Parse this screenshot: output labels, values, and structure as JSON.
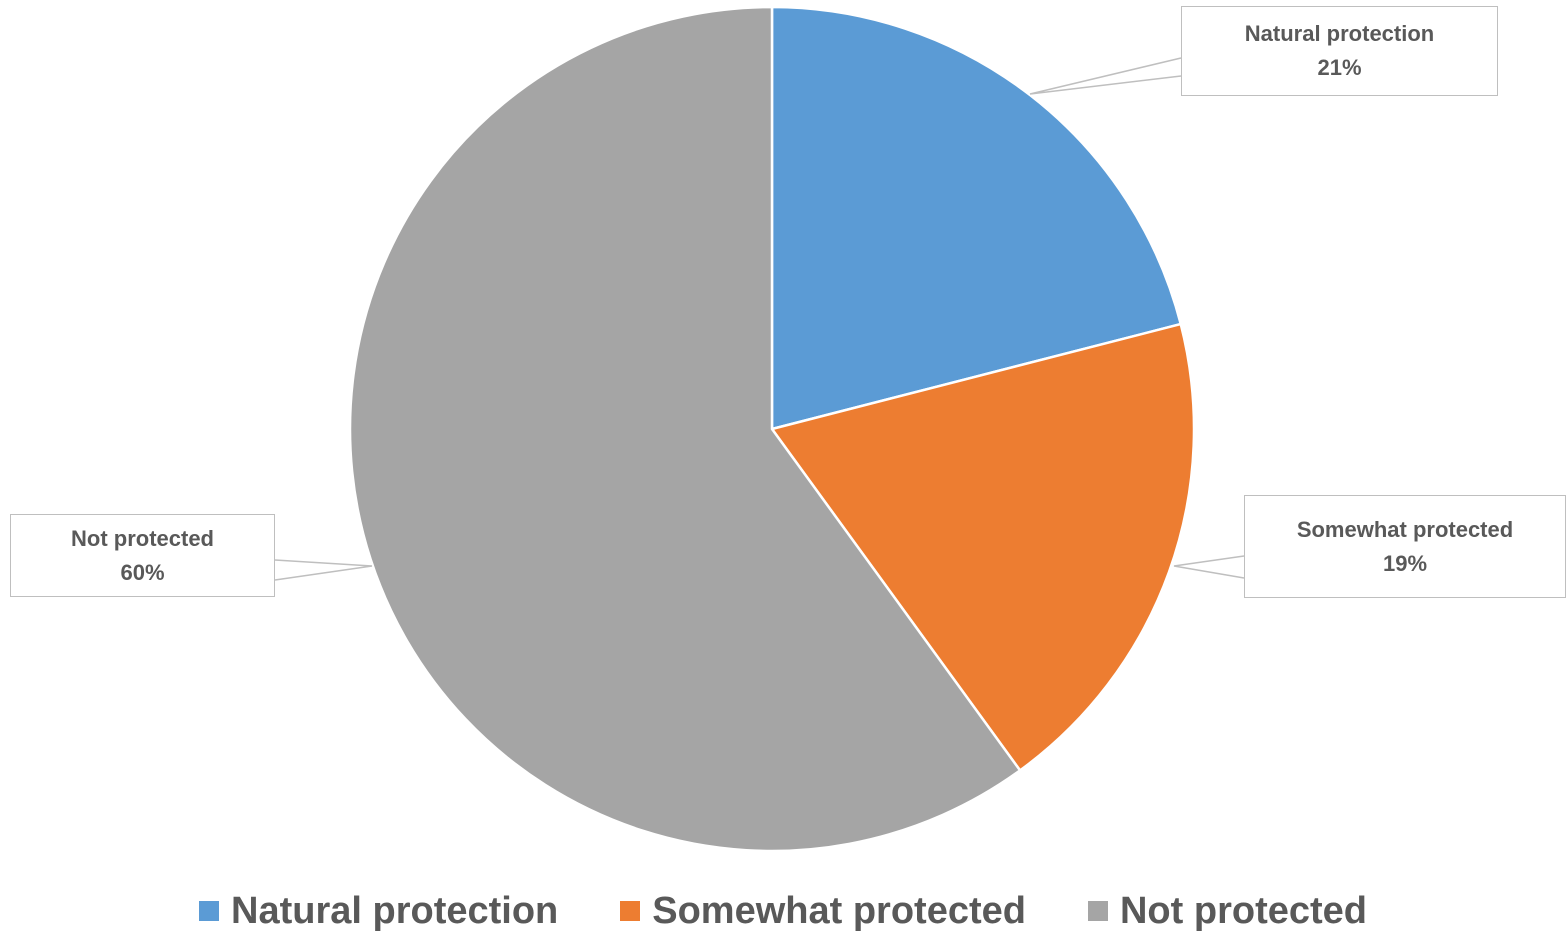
{
  "chart_data": {
    "type": "pie",
    "title": "",
    "slices": [
      {
        "label": "Natural protection",
        "value": 21,
        "display": "21%",
        "color": "#5b9bd5"
      },
      {
        "label": "Somewhat protected",
        "value": 19,
        "display": "19%",
        "color": "#ed7d31"
      },
      {
        "label": "Not protected",
        "value": 60,
        "display": "60%",
        "color": "#a5a5a5"
      }
    ],
    "legend_position": "bottom",
    "data_labels": "callouts with category name and percentage"
  }
}
